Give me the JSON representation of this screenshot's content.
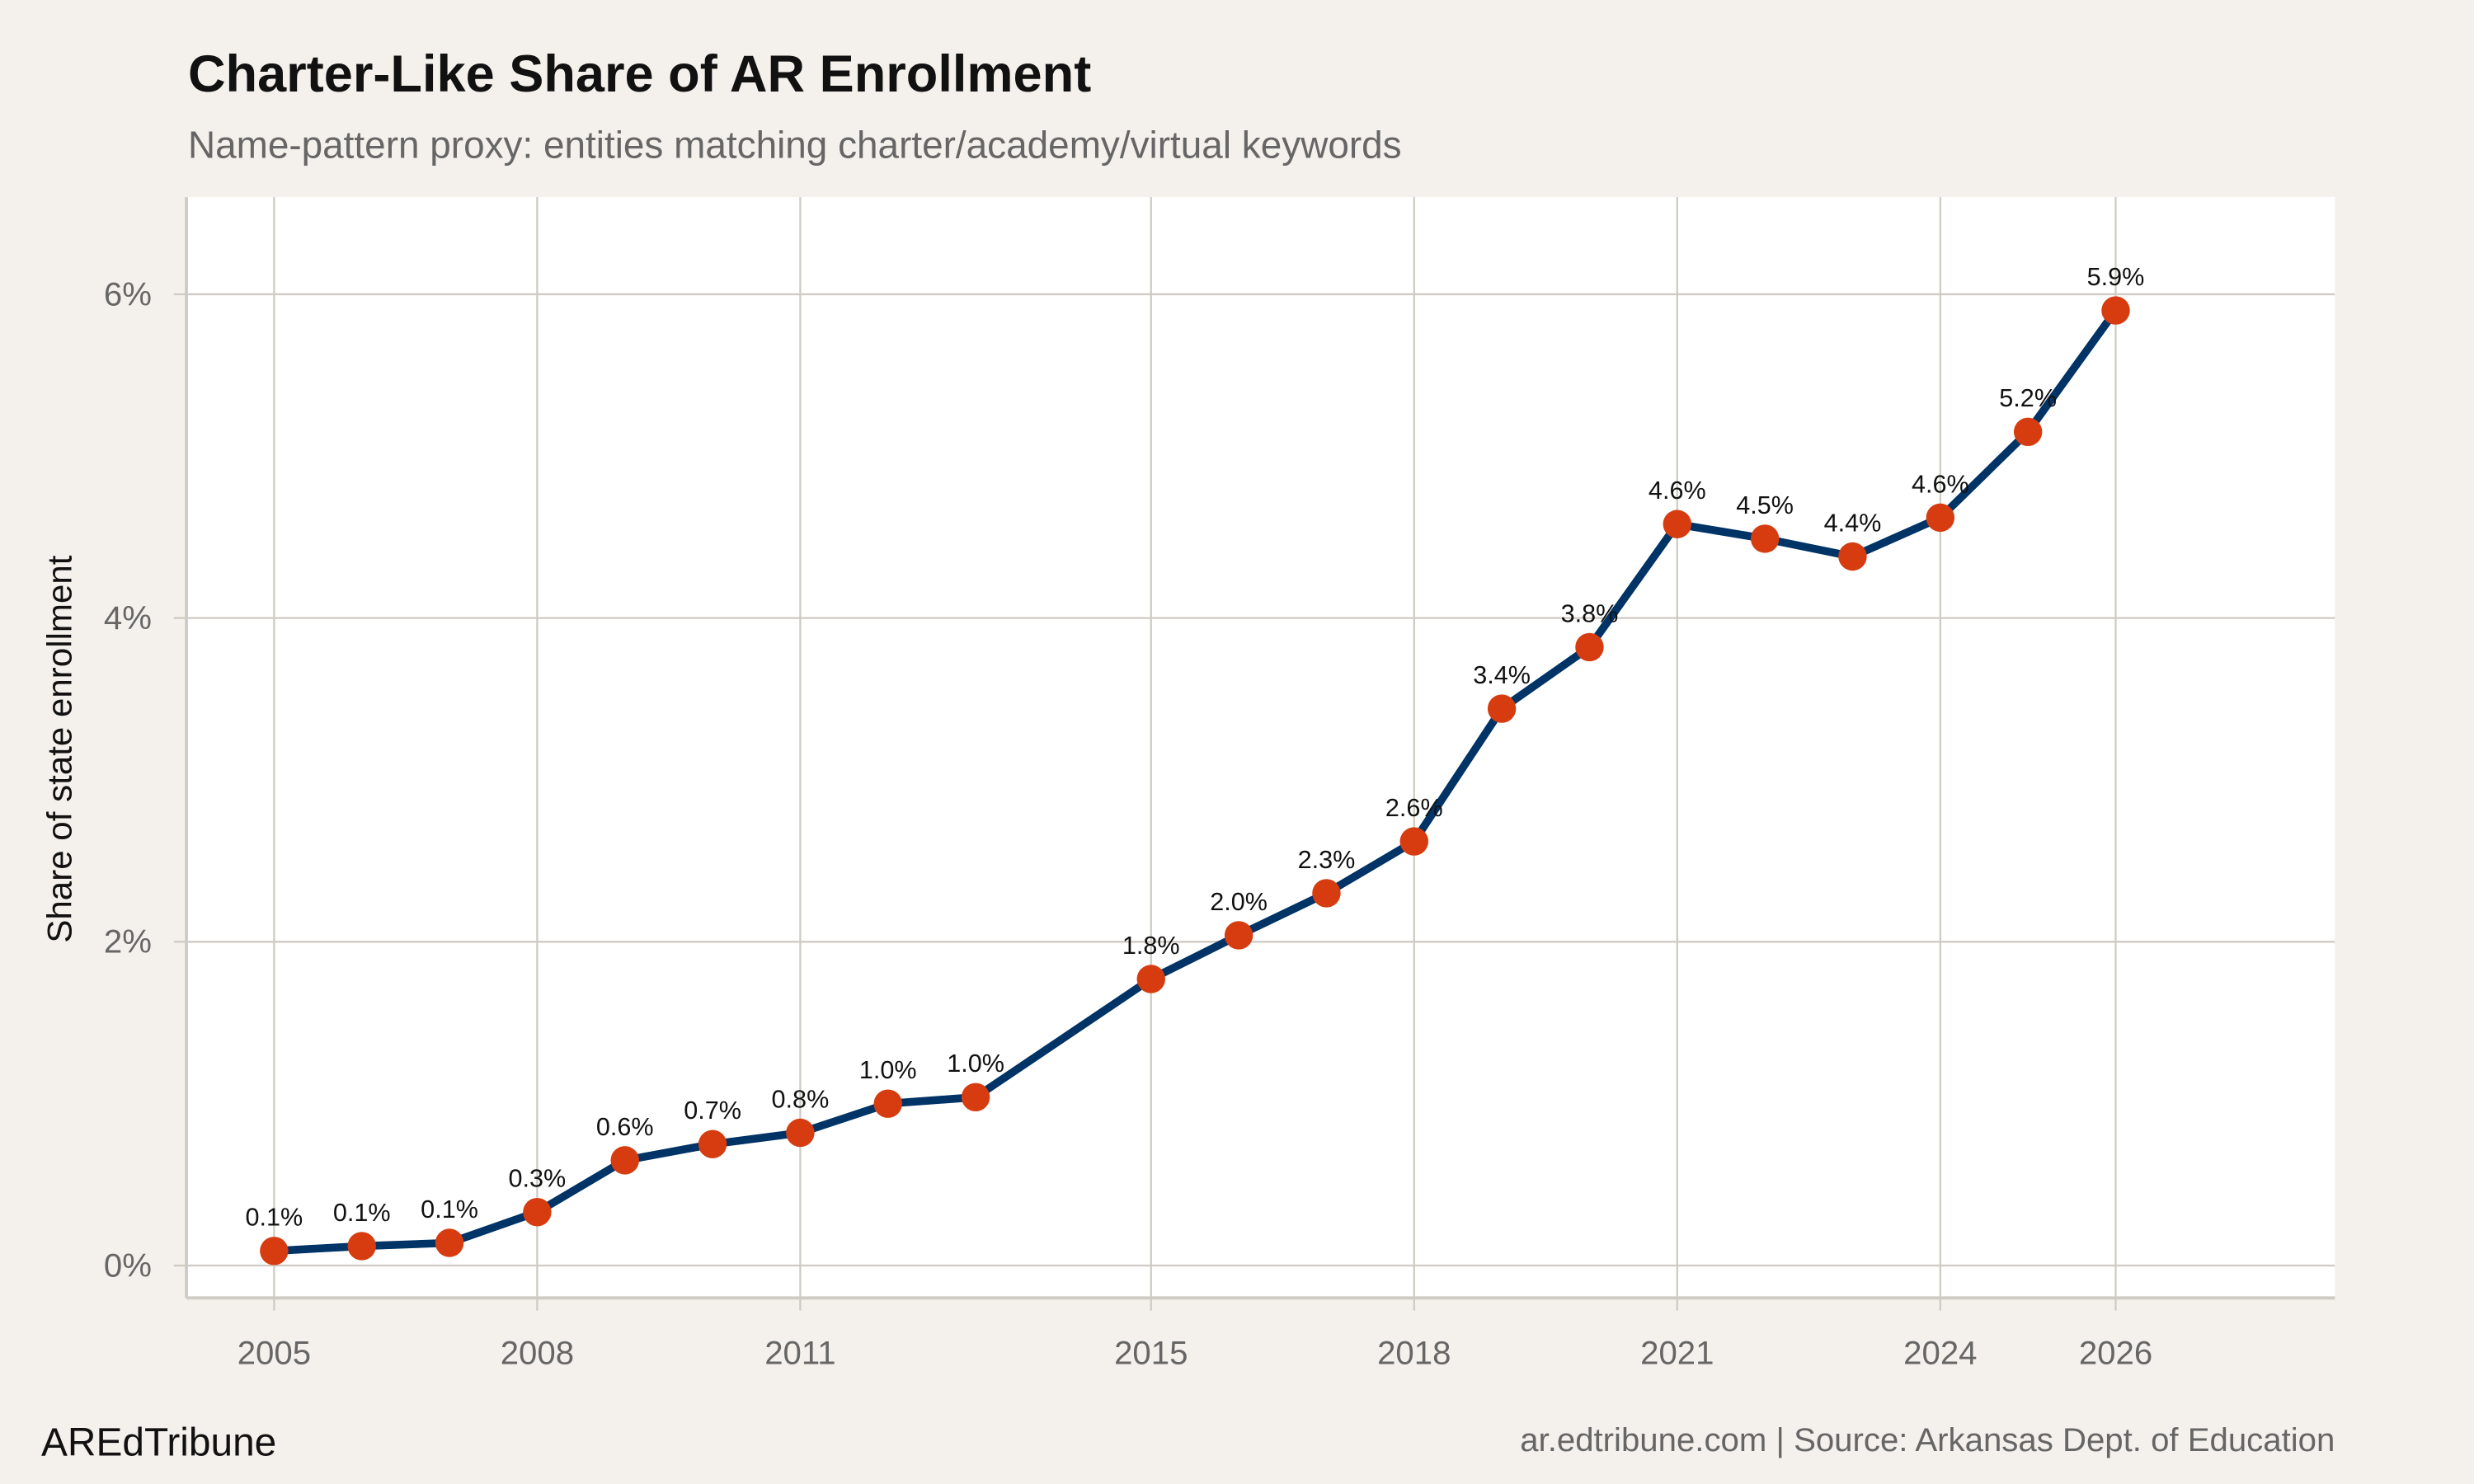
{
  "chart_data": {
    "type": "line",
    "title": "Charter-Like Share of AR Enrollment",
    "subtitle": "Name-pattern proxy: entities matching charter/academy/virtual keywords",
    "xlabel": "",
    "ylabel": "Share of state enrollment",
    "xlim": [
      2004,
      2028.5
    ],
    "ylim": [
      -0.2,
      6.6
    ],
    "x_ticks": [
      2005,
      2008,
      2011,
      2015,
      2018,
      2021,
      2024,
      2026
    ],
    "y_ticks": [
      0,
      2,
      4,
      6
    ],
    "y_tick_labels": [
      "0%",
      "2%",
      "4%",
      "6%"
    ],
    "grid": true,
    "x": [
      2005,
      2006,
      2007,
      2008,
      2009,
      2010,
      2011,
      2012,
      2013,
      2015,
      2016,
      2017,
      2018,
      2019,
      2020,
      2021,
      2022,
      2023,
      2024,
      2025,
      2026
    ],
    "y": [
      0.09,
      0.12,
      0.14,
      0.33,
      0.65,
      0.75,
      0.82,
      1.0,
      1.04,
      1.77,
      2.04,
      2.3,
      2.62,
      3.44,
      3.82,
      4.58,
      4.49,
      4.38,
      4.62,
      5.15,
      5.9
    ],
    "labels": [
      "0.1%",
      "0.1%",
      "0.1%",
      "0.3%",
      "0.6%",
      "0.7%",
      "0.8%",
      "1.0%",
      "1.0%",
      "1.8%",
      "2.0%",
      "2.3%",
      "2.6%",
      "3.4%",
      "3.8%",
      "4.6%",
      "4.5%",
      "4.4%",
      "4.6%",
      "5.2%",
      "5.9%"
    ],
    "line_color": "#003366",
    "marker_color": "#d63c10"
  },
  "footer": {
    "brand": "AREdTribune",
    "source": "ar.edtribune.com | Source: Arkansas Dept. of Education"
  }
}
